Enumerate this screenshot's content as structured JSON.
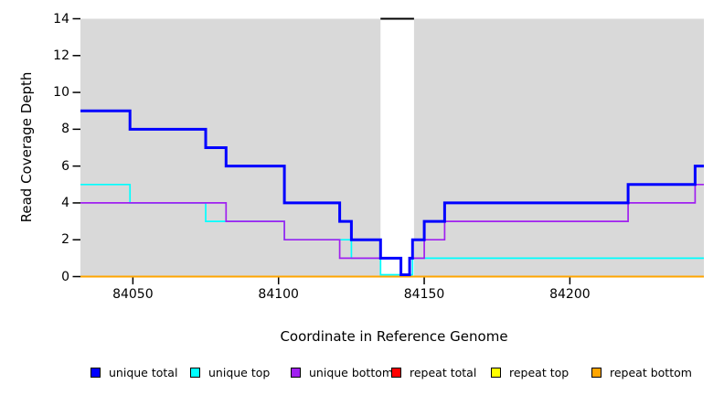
{
  "figure": {
    "y_axis_title": "Read Coverage Depth",
    "x_axis_title": "Coordinate in Reference Genome"
  },
  "chart_data": {
    "type": "line",
    "subtype": "step",
    "title": "",
    "xlabel": "Coordinate in Reference Genome",
    "ylabel": "Read Coverage Depth",
    "xlim": [
      84032,
      84246
    ],
    "ylim": [
      0,
      14
    ],
    "x_ticks": [
      84050,
      84100,
      84150,
      84200
    ],
    "y_ticks": [
      0,
      2,
      4,
      6,
      8,
      10,
      12,
      14
    ],
    "grid": false,
    "plot_background": "#d9d9d9",
    "page_background": "#ffffff",
    "tick_color": "#000000",
    "highlight_band": {
      "x_start": 84135,
      "x_end": 84146.5,
      "fill": "#ffffff",
      "cap_y": 14,
      "cap_color": "#000000"
    },
    "series": [
      {
        "name": "repeat total",
        "color": "#ff0000",
        "width": 1.6,
        "group": "repeat",
        "steps": [
          [
            84032,
            0
          ]
        ]
      },
      {
        "name": "repeat top",
        "color": "#ffff00",
        "width": 1.6,
        "group": "repeat",
        "steps": [
          [
            84032,
            0
          ]
        ]
      },
      {
        "name": "repeat bottom",
        "color": "#ffa500",
        "width": 2.0,
        "group": "repeat",
        "steps": [
          [
            84032,
            0
          ]
        ]
      },
      {
        "name": "unique top",
        "color": "#00ffff",
        "width": 1.7,
        "group": "unique",
        "steps": [
          [
            84032,
            5
          ],
          [
            84049,
            4
          ],
          [
            84075,
            3
          ],
          [
            84102,
            2
          ],
          [
            84125,
            1
          ],
          [
            84135,
            0
          ],
          [
            84146,
            1
          ]
        ]
      },
      {
        "name": "unique bottom",
        "color": "#a020f0",
        "width": 1.7,
        "group": "unique",
        "steps": [
          [
            84032,
            4
          ],
          [
            84082,
            3
          ],
          [
            84102,
            2
          ],
          [
            84121,
            1
          ],
          [
            84142,
            0
          ],
          [
            84145,
            1
          ],
          [
            84150,
            2
          ],
          [
            84157,
            3
          ],
          [
            84220,
            4
          ],
          [
            84243,
            5
          ]
        ]
      },
      {
        "name": "unique total",
        "color": "#0000ff",
        "width": 3.0,
        "group": "unique",
        "steps": [
          [
            84032,
            9
          ],
          [
            84049,
            8
          ],
          [
            84075,
            7
          ],
          [
            84082,
            6
          ],
          [
            84102,
            4
          ],
          [
            84121,
            3
          ],
          [
            84125,
            2
          ],
          [
            84135,
            1
          ],
          [
            84142,
            0
          ],
          [
            84145,
            1
          ],
          [
            84146,
            2
          ],
          [
            84150,
            3
          ],
          [
            84157,
            4
          ],
          [
            84220,
            5
          ],
          [
            84243,
            6
          ]
        ]
      }
    ],
    "legend_position": "bottom",
    "legend": [
      {
        "label": "unique total",
        "color": "#0000ff"
      },
      {
        "label": "unique top",
        "color": "#00ffff"
      },
      {
        "label": "unique bottom",
        "color": "#a020f0"
      },
      {
        "label": "repeat total",
        "color": "#ff0000"
      },
      {
        "label": "repeat top",
        "color": "#ffff00"
      },
      {
        "label": "repeat bottom",
        "color": "#ffa500"
      }
    ]
  }
}
